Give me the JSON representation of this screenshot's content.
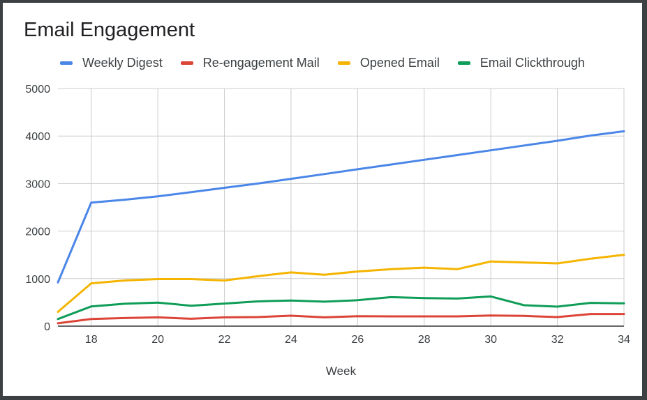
{
  "chart_data": {
    "type": "line",
    "title": "Email Engagement",
    "xlabel": "Week",
    "ylabel": "",
    "xlim": [
      17,
      34
    ],
    "ylim": [
      0,
      5000
    ],
    "grid": true,
    "legend_position": "top-left",
    "x_ticks": [
      18,
      20,
      22,
      24,
      26,
      28,
      30,
      32,
      34
    ],
    "y_ticks": [
      0,
      1000,
      2000,
      3000,
      4000,
      5000
    ],
    "x": [
      17,
      18,
      19,
      20,
      21,
      22,
      23,
      24,
      25,
      26,
      27,
      28,
      29,
      30,
      31,
      32,
      33,
      34
    ],
    "series": [
      {
        "name": "Weekly Digest",
        "color": "#4a86e8",
        "values": [
          920,
          2600,
          2660,
          2730,
          2820,
          2910,
          3000,
          3100,
          3200,
          3300,
          3400,
          3500,
          3600,
          3700,
          3800,
          3900,
          4010,
          4100
        ]
      },
      {
        "name": "Re-engagement Mail",
        "color": "#db4437",
        "values": [
          60,
          150,
          170,
          185,
          155,
          185,
          190,
          220,
          185,
          210,
          205,
          205,
          205,
          225,
          215,
          190,
          255,
          255
        ]
      },
      {
        "name": "Opened Email",
        "color": "#f4b400",
        "values": [
          300,
          900,
          960,
          990,
          990,
          960,
          1050,
          1130,
          1080,
          1150,
          1200,
          1230,
          1200,
          1360,
          1340,
          1320,
          1420,
          1500
        ]
      },
      {
        "name": "Email Clickthrough",
        "color": "#0f9d58",
        "values": [
          150,
          415,
          470,
          495,
          430,
          475,
          520,
          540,
          515,
          545,
          610,
          590,
          580,
          625,
          440,
          410,
          490,
          480
        ]
      }
    ]
  }
}
